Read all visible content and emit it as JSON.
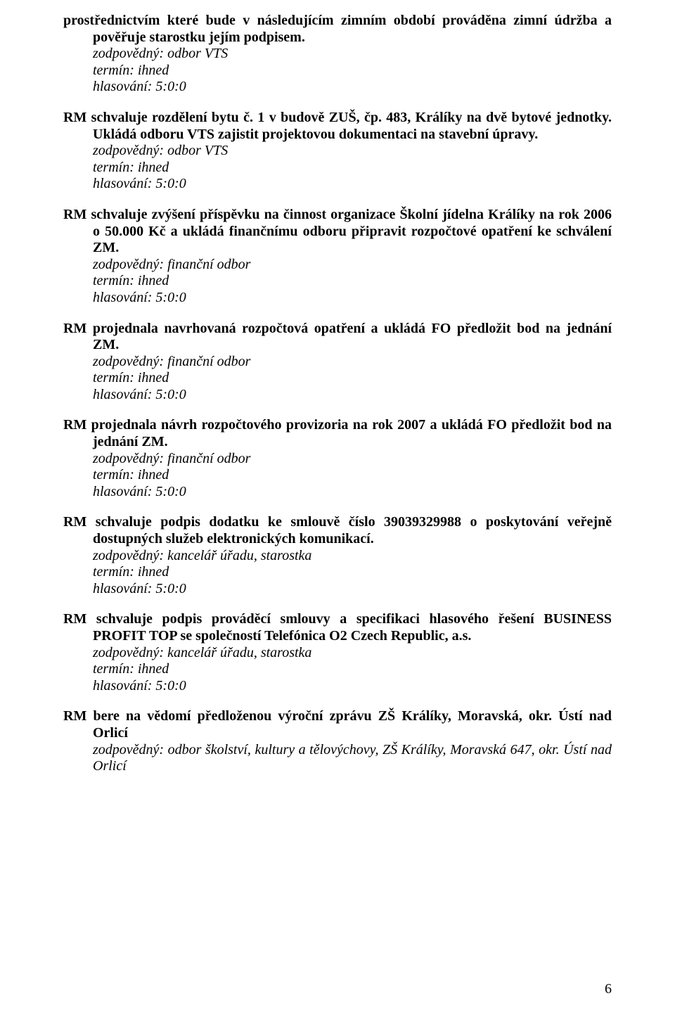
{
  "items": [
    {
      "lead": "prostřednictvím které bude v následujícím zimním období prováděna zimní údržba a pověřuje starostku jejím podpisem.",
      "resp": "zodpovědný: odbor VTS",
      "term": "termín: ihned",
      "vote": "hlasování: 5:0:0"
    },
    {
      "lead": "RM schvaluje rozdělení bytu č. 1 v budově ZUŠ, čp. 483, Králíky na dvě bytové jednotky. Ukládá odboru VTS zajistit projektovou dokumentaci na stavební úpravy.",
      "resp": "zodpovědný: odbor VTS",
      "term": "termín: ihned",
      "vote": "hlasování: 5:0:0"
    },
    {
      "lead": "RM schvaluje zvýšení příspěvku na činnost organizace Školní jídelna Králíky na rok 2006 o 50.000 Kč a ukládá finančnímu odboru připravit rozpočtové opatření ke schválení ZM.",
      "resp": "zodpovědný: finanční odbor",
      "term": "termín: ihned",
      "vote": "hlasování: 5:0:0"
    },
    {
      "lead": "RM projednala navrhovaná rozpočtová opatření a ukládá FO předložit bod na jednání ZM.",
      "resp": "zodpovědný: finanční odbor",
      "term": "termín: ihned",
      "vote": "hlasování: 5:0:0"
    },
    {
      "lead": "RM projednala návrh rozpočtového provizoria na rok 2007 a ukládá FO předložit bod na jednání ZM.",
      "resp": "zodpovědný: finanční odbor",
      "term": "termín: ihned",
      "vote": "hlasování: 5:0:0"
    },
    {
      "lead": "RM schvaluje podpis dodatku ke smlouvě číslo 39039329988 o poskytování veřejně dostupných služeb elektronických komunikací.",
      "resp": "zodpovědný: kancelář úřadu, starostka",
      "term": "termín: ihned",
      "vote": "hlasování: 5:0:0"
    },
    {
      "lead": "RM schvaluje podpis prováděcí smlouvy a specifikaci hlasového řešení BUSINESS PROFIT TOP se společností Telefónica O2 Czech Republic, a.s.",
      "resp": "zodpovědný: kancelář úřadu, starostka",
      "term": "termín: ihned",
      "vote": "hlasování: 5:0:0"
    },
    {
      "lead": "RM bere na vědomí předloženou výroční zprávu ZŠ Králíky, Moravská, okr. Ústí nad Orlicí",
      "resp": "zodpovědný: odbor školství, kultury a tělovýchovy, ZŠ Králíky, Moravská 647, okr. Ústí nad Orlicí",
      "term": "",
      "vote": ""
    }
  ],
  "page_number": "6"
}
